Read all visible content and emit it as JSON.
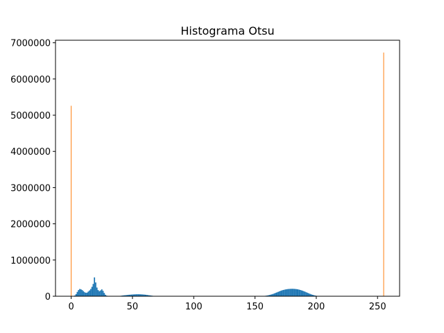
{
  "chart_data": {
    "type": "bar",
    "title": "Histograma Otsu",
    "xlabel": "",
    "ylabel": "",
    "xlim": [
      -12.8,
      268
    ],
    "ylim": [
      0,
      7070000
    ],
    "xticks": [
      0,
      50,
      100,
      150,
      200,
      250
    ],
    "yticks": [
      0,
      1000000,
      2000000,
      3000000,
      4000000,
      5000000,
      6000000,
      7000000
    ],
    "grid": false,
    "legend": "none",
    "colors": {
      "blue": "#1f77b4",
      "orange": "#ff7f0e"
    },
    "series": [
      {
        "color": "#1f77b4",
        "bins": [
          [
            3,
            20000
          ],
          [
            4,
            60000
          ],
          [
            5,
            120000
          ],
          [
            6,
            170000
          ],
          [
            7,
            200000
          ],
          [
            8,
            190000
          ],
          [
            9,
            170000
          ],
          [
            10,
            140000
          ],
          [
            11,
            110000
          ],
          [
            12,
            95000
          ],
          [
            13,
            100000
          ],
          [
            14,
            130000
          ],
          [
            15,
            160000
          ],
          [
            16,
            200000
          ],
          [
            17,
            260000
          ],
          [
            18,
            340000
          ],
          [
            19,
            520000
          ],
          [
            20,
            380000
          ],
          [
            21,
            240000
          ],
          [
            22,
            170000
          ],
          [
            23,
            140000
          ],
          [
            24,
            160000
          ],
          [
            25,
            190000
          ],
          [
            26,
            150000
          ],
          [
            27,
            90000
          ],
          [
            28,
            40000
          ],
          [
            29,
            15000
          ],
          [
            40,
            10000
          ],
          [
            41,
            15000
          ],
          [
            42,
            20000
          ],
          [
            43,
            25000
          ],
          [
            44,
            28000
          ],
          [
            45,
            32000
          ],
          [
            46,
            36000
          ],
          [
            47,
            40000
          ],
          [
            48,
            42000
          ],
          [
            49,
            45000
          ],
          [
            50,
            48000
          ],
          [
            51,
            50000
          ],
          [
            52,
            52000
          ],
          [
            53,
            54000
          ],
          [
            54,
            55000
          ],
          [
            55,
            55000
          ],
          [
            56,
            54000
          ],
          [
            57,
            52000
          ],
          [
            58,
            50000
          ],
          [
            59,
            47000
          ],
          [
            60,
            44000
          ],
          [
            61,
            40000
          ],
          [
            62,
            35000
          ],
          [
            63,
            30000
          ],
          [
            64,
            25000
          ],
          [
            65,
            20000
          ],
          [
            66,
            15000
          ],
          [
            67,
            10000
          ],
          [
            157,
            5000
          ],
          [
            158,
            10000
          ],
          [
            159,
            15000
          ],
          [
            160,
            20000
          ],
          [
            161,
            28000
          ],
          [
            162,
            36000
          ],
          [
            163,
            45000
          ],
          [
            164,
            55000
          ],
          [
            165,
            67000
          ],
          [
            166,
            80000
          ],
          [
            167,
            94000
          ],
          [
            168,
            108000
          ],
          [
            169,
            122000
          ],
          [
            170,
            136000
          ],
          [
            171,
            150000
          ],
          [
            172,
            162000
          ],
          [
            173,
            172000
          ],
          [
            174,
            180000
          ],
          [
            175,
            188000
          ],
          [
            176,
            194000
          ],
          [
            177,
            199000
          ],
          [
            178,
            202000
          ],
          [
            179,
            204000
          ],
          [
            180,
            205000
          ],
          [
            181,
            205000
          ],
          [
            182,
            203000
          ],
          [
            183,
            200000
          ],
          [
            184,
            196000
          ],
          [
            185,
            190000
          ],
          [
            186,
            182000
          ],
          [
            187,
            173000
          ],
          [
            188,
            162000
          ],
          [
            189,
            150000
          ],
          [
            190,
            137000
          ],
          [
            191,
            123000
          ],
          [
            192,
            108000
          ],
          [
            193,
            93000
          ],
          [
            194,
            78000
          ],
          [
            195,
            64000
          ],
          [
            196,
            51000
          ],
          [
            197,
            39000
          ],
          [
            198,
            29000
          ],
          [
            199,
            20000
          ],
          [
            200,
            13000
          ],
          [
            201,
            8000
          ],
          [
            202,
            4000
          ]
        ]
      },
      {
        "color": "#ff7f0e",
        "bins": [
          [
            0,
            5260000
          ],
          [
            255,
            6730000
          ]
        ]
      }
    ]
  }
}
